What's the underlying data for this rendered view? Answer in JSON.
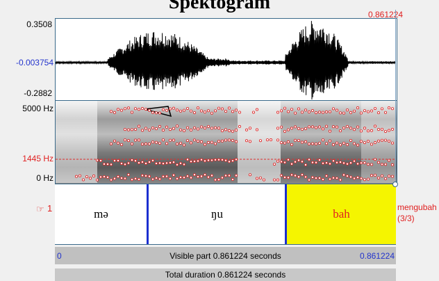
{
  "window": {
    "title": "Spektogram"
  },
  "waveform": {
    "max_label": "0.3508",
    "zero_label": "-0.003754",
    "min_label": "-0.2882"
  },
  "spectrogram": {
    "top_label": "5000 Hz",
    "cursor_label": "1445 Hz",
    "bottom_label": "0 Hz"
  },
  "cursor": {
    "time_label": "0.861224"
  },
  "tier": {
    "number": "1",
    "segments": [
      {
        "text": "mə"
      },
      {
        "text": "ŋu"
      },
      {
        "text": "bah"
      }
    ],
    "side_label": "mengubah",
    "side_sublabel": "(3/3)"
  },
  "visible_bar": {
    "start": "0",
    "text": "Visible part 0.861224 seconds",
    "end": "0.861224"
  },
  "total_bar": {
    "text": "Total duration 0.861224 seconds"
  },
  "colors": {
    "selection": "#f5f500",
    "boundary": "#1b2fd0",
    "formant": "#e02020",
    "axis_blue": "#2233cc"
  }
}
